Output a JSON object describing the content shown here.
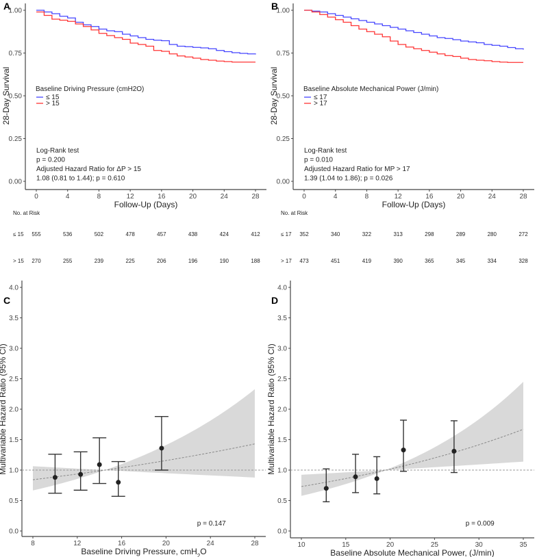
{
  "chart_data": [
    {
      "panel": "A",
      "type": "line",
      "step": true,
      "xlabel": "Follow-Up (Days)",
      "ylabel": "28-Day Survival",
      "xlim": [
        0,
        28
      ],
      "ylim": [
        0,
        1
      ],
      "xticks": [
        0,
        4,
        8,
        12,
        16,
        20,
        24,
        28
      ],
      "yticks": [
        "0.00",
        "0.25",
        "0.50",
        "0.75",
        "1.00"
      ],
      "legend_title": "Baseline Driving Pressure (cmH2O)",
      "legend_placement": "middle-left",
      "series": [
        {
          "name": "≤ 15",
          "color": "#4444ff",
          "x": [
            0,
            1,
            2,
            3,
            4,
            5,
            6,
            7,
            8,
            9,
            10,
            11,
            12,
            13,
            14,
            15,
            16,
            17,
            18,
            19,
            20,
            21,
            22,
            23,
            24,
            25,
            26,
            27,
            28
          ],
          "values": [
            1.0,
            0.99,
            0.98,
            0.965,
            0.955,
            0.93,
            0.915,
            0.905,
            0.89,
            0.88,
            0.875,
            0.86,
            0.85,
            0.84,
            0.83,
            0.825,
            0.822,
            0.8,
            0.79,
            0.787,
            0.783,
            0.78,
            0.775,
            0.765,
            0.758,
            0.752,
            0.748,
            0.745,
            0.742
          ]
        },
        {
          "name": "> 15",
          "color": "#ff3333",
          "x": [
            0,
            1,
            2,
            3,
            4,
            5,
            6,
            7,
            8,
            9,
            10,
            11,
            12,
            13,
            14,
            15,
            16,
            17,
            18,
            19,
            20,
            21,
            22,
            23,
            24,
            25,
            26,
            27,
            28
          ],
          "values": [
            0.99,
            0.97,
            0.948,
            0.942,
            0.935,
            0.92,
            0.905,
            0.885,
            0.865,
            0.852,
            0.84,
            0.83,
            0.808,
            0.8,
            0.79,
            0.765,
            0.76,
            0.745,
            0.733,
            0.727,
            0.72,
            0.712,
            0.708,
            0.703,
            0.7,
            0.697,
            0.697,
            0.697,
            0.697
          ]
        }
      ],
      "annotations": [
        "Log-Rank test",
        "p = 0.200",
        "Adjusted Hazard Ratio for ΔP > 15",
        "1.08 (0.81 to 1.44); p = 0.610"
      ],
      "risk_table": {
        "title": "No. at Risk",
        "days": [
          0,
          4,
          8,
          12,
          16,
          20,
          24,
          28
        ],
        "rows": [
          {
            "label": "≤ 15",
            "values": [
              "555",
              "536",
              "502",
              "478",
              "457",
              "438",
              "424",
              "412"
            ]
          },
          {
            "label": "> 15",
            "values": [
              "270",
              "255",
              "239",
              "225",
              "206",
              "196",
              "190",
              "188"
            ]
          }
        ]
      }
    },
    {
      "panel": "B",
      "type": "line",
      "step": true,
      "xlabel": "Follow-Up (Days)",
      "ylabel": "28-Day Survival",
      "xlim": [
        0,
        28
      ],
      "ylim": [
        0,
        1
      ],
      "xticks": [
        0,
        4,
        8,
        12,
        16,
        20,
        24,
        28
      ],
      "yticks": [
        "0.00",
        "0.25",
        "0.50",
        "0.75",
        "1.00"
      ],
      "legend_title": "Baseline Absolute Mechanical Power (J/min)",
      "legend_placement": "middle-left",
      "series": [
        {
          "name": "≤ 17",
          "color": "#4444ff",
          "x": [
            0,
            1,
            2,
            3,
            4,
            5,
            6,
            7,
            8,
            9,
            10,
            11,
            12,
            13,
            14,
            15,
            16,
            17,
            18,
            19,
            20,
            21,
            22,
            23,
            24,
            25,
            26,
            27,
            28
          ],
          "values": [
            1.0,
            0.995,
            0.99,
            0.98,
            0.97,
            0.96,
            0.95,
            0.94,
            0.93,
            0.92,
            0.91,
            0.9,
            0.89,
            0.88,
            0.87,
            0.86,
            0.85,
            0.84,
            0.835,
            0.828,
            0.82,
            0.815,
            0.81,
            0.8,
            0.795,
            0.79,
            0.782,
            0.775,
            0.77
          ]
        },
        {
          "name": "> 17",
          "color": "#ff3333",
          "x": [
            0,
            1,
            2,
            3,
            4,
            5,
            6,
            7,
            8,
            9,
            10,
            11,
            12,
            13,
            14,
            15,
            16,
            17,
            18,
            19,
            20,
            21,
            22,
            23,
            24,
            25,
            26,
            27,
            28
          ],
          "values": [
            1.0,
            0.99,
            0.975,
            0.96,
            0.945,
            0.93,
            0.91,
            0.89,
            0.875,
            0.86,
            0.845,
            0.82,
            0.8,
            0.785,
            0.775,
            0.765,
            0.755,
            0.745,
            0.735,
            0.73,
            0.72,
            0.712,
            0.708,
            0.705,
            0.7,
            0.697,
            0.695,
            0.695,
            0.695
          ]
        }
      ],
      "annotations": [
        "Log-Rank test",
        "p = 0.010",
        "Adjusted Hazard Ratio for MP > 17",
        "1.39 (1.04 to 1.86); p = 0.026"
      ],
      "risk_table": {
        "title": "No. at Risk",
        "days": [
          0,
          4,
          8,
          12,
          16,
          20,
          24,
          28
        ],
        "rows": [
          {
            "label": "≤ 17",
            "values": [
              "352",
              "340",
              "322",
              "313",
              "298",
              "289",
              "280",
              "272"
            ]
          },
          {
            "label": "> 17",
            "values": [
              "473",
              "451",
              "419",
              "390",
              "365",
              "345",
              "334",
              "328"
            ]
          }
        ]
      }
    },
    {
      "panel": "C",
      "type": "scatter",
      "xlabel": "Baseline Driving Pressure, cmH",
      "xlabel_sub": "2",
      "xlabel_tail": "O",
      "ylabel": "Multivariable Hazard Ratio (95% CI)",
      "xlim": [
        8,
        28
      ],
      "ylim": [
        0,
        4
      ],
      "xticks": [
        8,
        12,
        16,
        20,
        24,
        28
      ],
      "yticks": [
        "0.0",
        "0.5",
        "1.0",
        "1.5",
        "2.0",
        "2.5",
        "3.0",
        "3.5",
        "4.0"
      ],
      "reference_line": 1.0,
      "spline": {
        "ref_x": 14.5,
        "log_slope": 0.0265,
        "log_se_slope": 0.0361
      },
      "points": [
        {
          "x": 10.0,
          "y": 0.88,
          "lo": 0.62,
          "hi": 1.26
        },
        {
          "x": 12.3,
          "y": 0.93,
          "lo": 0.67,
          "hi": 1.3
        },
        {
          "x": 14.0,
          "y": 1.09,
          "lo": 0.78,
          "hi": 1.53
        },
        {
          "x": 15.7,
          "y": 0.8,
          "lo": 0.57,
          "hi": 1.14
        },
        {
          "x": 19.6,
          "y": 1.36,
          "lo": 1.0,
          "hi": 1.88
        }
      ],
      "annotation": "p = 0.147"
    },
    {
      "panel": "D",
      "type": "scatter",
      "xlabel": "Baseline Absolute Mechanical Power, (J/min)",
      "xlabel_sub": "",
      "xlabel_tail": "",
      "ylabel": "Multivariable Hazard Ratio (95% CI)",
      "xlim": [
        10,
        35
      ],
      "ylim": [
        0,
        4
      ],
      "xticks": [
        10,
        15,
        20,
        25,
        30,
        35
      ],
      "yticks": [
        "0.0",
        "0.5",
        "1.0",
        "1.5",
        "2.0",
        "2.5",
        "3.0",
        "3.5",
        "4.0"
      ],
      "reference_line": 1.0,
      "spline": {
        "ref_x": 19.5,
        "log_slope": 0.0331,
        "log_se_slope": 0.0247
      },
      "points": [
        {
          "x": 12.8,
          "y": 0.7,
          "lo": 0.48,
          "hi": 1.02
        },
        {
          "x": 16.1,
          "y": 0.89,
          "lo": 0.63,
          "hi": 1.26
        },
        {
          "x": 18.5,
          "y": 0.86,
          "lo": 0.61,
          "hi": 1.22
        },
        {
          "x": 21.5,
          "y": 1.33,
          "lo": 0.98,
          "hi": 1.82
        },
        {
          "x": 27.2,
          "y": 1.31,
          "lo": 0.96,
          "hi": 1.81
        }
      ],
      "annotation": "p = 0.009"
    }
  ]
}
